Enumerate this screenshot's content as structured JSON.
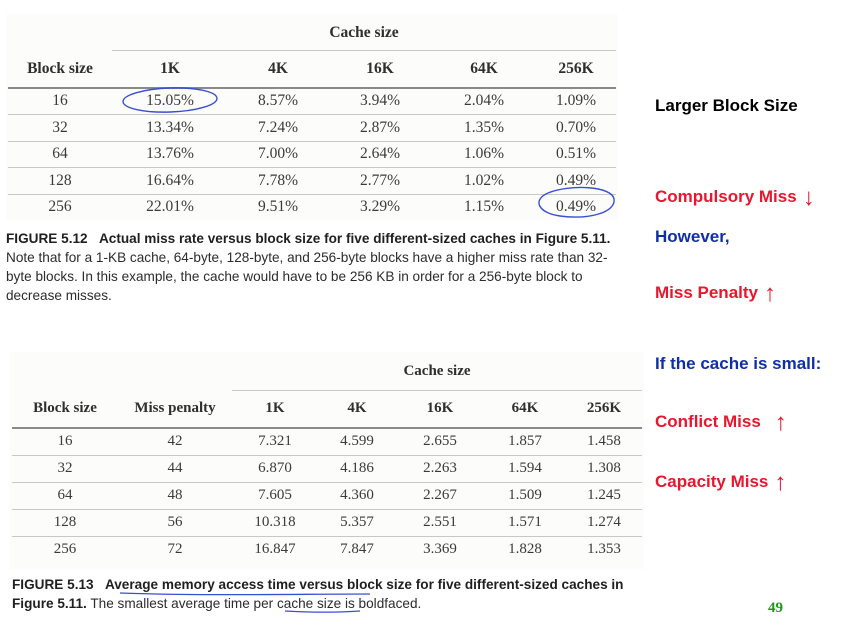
{
  "table1": {
    "group_header": "Cache size",
    "columns": [
      "Block size",
      "1K",
      "4K",
      "16K",
      "64K",
      "256K"
    ],
    "rows": [
      [
        "16",
        "15.05%",
        "8.57%",
        "3.94%",
        "2.04%",
        "1.09%"
      ],
      [
        "32",
        "13.34%",
        "7.24%",
        "2.87%",
        "1.35%",
        "0.70%"
      ],
      [
        "64",
        "13.76%",
        "7.00%",
        "2.64%",
        "1.06%",
        "0.51%"
      ],
      [
        "128",
        "16.64%",
        "7.78%",
        "2.77%",
        "1.02%",
        "0.49%"
      ],
      [
        "256",
        "22.01%",
        "9.51%",
        "3.29%",
        "1.15%",
        "0.49%"
      ]
    ],
    "caption_label": "FIGURE 5.12",
    "caption_title": "Actual miss rate versus block size for five different-sized caches in Figure 5.11.",
    "caption_text": "Note that for a 1-KB cache, 64-byte, 128-byte, and 256-byte blocks have a higher miss rate than 32-byte blocks. In this example, the cache would have to be 256 KB in order for a 256-byte block to decrease misses."
  },
  "table2": {
    "group_header": "Cache size",
    "columns": [
      "Block size",
      "Miss penalty",
      "1K",
      "4K",
      "16K",
      "64K",
      "256K"
    ],
    "rows": [
      [
        "16",
        "42",
        "7.321",
        "4.599",
        "2.655",
        "1.857",
        "1.458"
      ],
      [
        "32",
        "44",
        "6.870",
        "4.186",
        "2.263",
        "1.594",
        "1.308"
      ],
      [
        "64",
        "48",
        "7.605",
        "4.360",
        "2.267",
        "1.509",
        "1.245"
      ],
      [
        "128",
        "56",
        "10.318",
        "5.357",
        "2.551",
        "1.571",
        "1.274"
      ],
      [
        "256",
        "72",
        "16.847",
        "7.847",
        "3.369",
        "1.828",
        "1.353"
      ]
    ],
    "caption_label": "FIGURE 5.13",
    "caption_title": "Average memory access time versus block size for five different-sized caches in Figure 5.11.",
    "caption_text": "The smallest average time per cache size is boldfaced."
  },
  "notes": {
    "larger_block_size": "Larger Block Size",
    "compulsory_miss": "Compulsory Miss",
    "however": "However,",
    "miss_penalty": "Miss Penalty",
    "small_cache": "If the cache is small:",
    "conflict_miss": "Conflict Miss",
    "capacity_miss": "Capacity Miss",
    "arrow_down": "↓",
    "arrow_up": "↑"
  },
  "colors": {
    "red": "#e8162e",
    "blue": "#102fa6",
    "annotation_ink": "#3a4fd0",
    "page_number": "#1a9a1a"
  },
  "page_number": "49"
}
